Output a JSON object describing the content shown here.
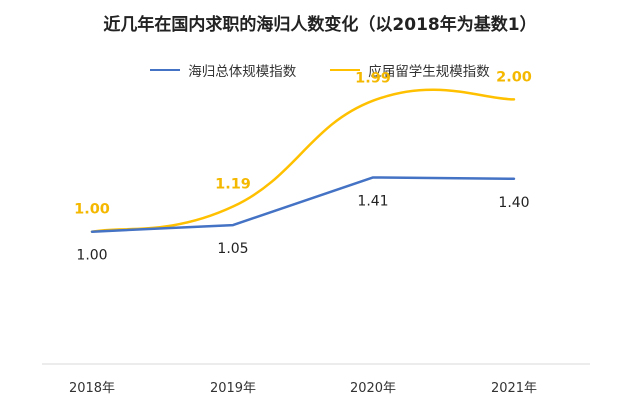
{
  "chart_data": {
    "type": "line",
    "title": "近几年在国内求职的海归人数变化（以2018年为基数1）",
    "categories": [
      "2018年",
      "2019年",
      "2020年",
      "2021年"
    ],
    "series": [
      {
        "name": "海归总体规模指数",
        "values": [
          1.0,
          1.05,
          1.41,
          1.4
        ],
        "labels": [
          "1.00",
          "1.05",
          "1.41",
          "1.40"
        ],
        "color": "#4472C4",
        "label_color": "#222222",
        "label_position": "below",
        "smooth": false
      },
      {
        "name": "应届留学生规模指数",
        "values": [
          1.0,
          1.19,
          1.99,
          2.0
        ],
        "labels": [
          "1.00",
          "1.19",
          "1.99",
          "2.00"
        ],
        "color": "#FFC000",
        "label_color": "#F5B800",
        "label_position": "above",
        "smooth": true
      }
    ],
    "ylim": [
      0.0,
      2.6
    ],
    "grid": false,
    "legend_position": "top-center",
    "axis_color": "#D9D9D9"
  }
}
